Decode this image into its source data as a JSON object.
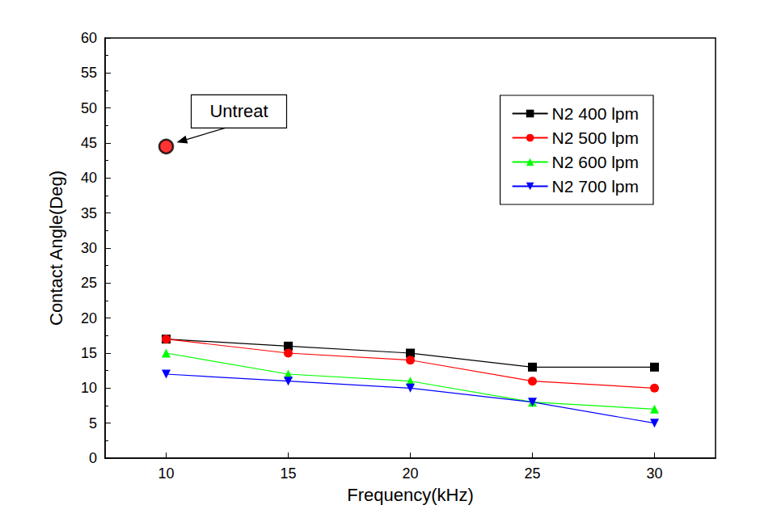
{
  "chart_data": {
    "type": "line",
    "x_label": "Frequency(kHz)",
    "y_label": "Contact Angle(Deg)",
    "x": [
      10,
      15,
      20,
      25,
      30
    ],
    "series": [
      {
        "name": "N2 400 lpm",
        "color": "#000000",
        "marker": "square",
        "values": [
          17,
          16,
          15,
          13,
          13
        ]
      },
      {
        "name": "N2 500 lpm",
        "color": "#ff0000",
        "marker": "circle",
        "values": [
          17,
          15,
          14,
          11,
          10
        ]
      },
      {
        "name": "N2 600 lpm",
        "color": "#00ff00",
        "marker": "triangle-up",
        "values": [
          15,
          12,
          11,
          8,
          7
        ]
      },
      {
        "name": "N2 700 lpm",
        "color": "#0000ff",
        "marker": "triangle-down",
        "values": [
          12,
          11,
          10,
          8,
          5
        ]
      }
    ],
    "xlim": [
      7.5,
      32.5
    ],
    "xticks": [
      10,
      15,
      20,
      25,
      30
    ],
    "ylim": [
      0,
      60
    ],
    "yticks": [
      0,
      5,
      10,
      15,
      20,
      25,
      30,
      35,
      40,
      45,
      50,
      55,
      60
    ],
    "legend": "upper right",
    "annotations": [
      {
        "text": "Untreat",
        "x": 10,
        "y": 44.5,
        "color": "#ff0000",
        "marker": "circle"
      }
    ]
  }
}
